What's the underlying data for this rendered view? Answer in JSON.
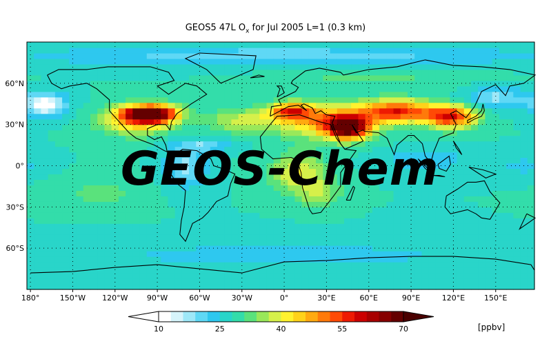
{
  "chart_data": {
    "type": "heatmap",
    "title_main": "GEOS5 47L O",
    "title_sub": "x",
    "title_rest": " for Jul 2005 L=1 (0.3 km)",
    "watermark": "GEOS-Chem",
    "x_ticks": [
      {
        "lon": -180,
        "label": "180°"
      },
      {
        "lon": -150,
        "label": "150°W"
      },
      {
        "lon": -120,
        "label": "120°W"
      },
      {
        "lon": -90,
        "label": "90°W"
      },
      {
        "lon": -60,
        "label": "60°W"
      },
      {
        "lon": -30,
        "label": "30°W"
      },
      {
        "lon": 0,
        "label": "0°"
      },
      {
        "lon": 30,
        "label": "30°E"
      },
      {
        "lon": 60,
        "label": "60°E"
      },
      {
        "lon": 90,
        "label": "90°E"
      },
      {
        "lon": 120,
        "label": "120°E"
      },
      {
        "lon": 150,
        "label": "150°E"
      }
    ],
    "y_ticks": [
      {
        "lat": 60,
        "label": "60°N"
      },
      {
        "lat": 30,
        "label": "30°N"
      },
      {
        "lat": 0,
        "label": "0°"
      },
      {
        "lat": -30,
        "label": "30°S"
      },
      {
        "lat": -60,
        "label": "60°S"
      }
    ],
    "xlim": [
      -182.5,
      177.5
    ],
    "ylim": [
      -90,
      90
    ],
    "colorbar": {
      "min": 10,
      "max": 70,
      "labels": [
        10,
        25,
        40,
        55,
        70
      ],
      "colors": [
        "#ffffff",
        "#d6f4fb",
        "#9ee8f8",
        "#5fd8f5",
        "#2ec8ef",
        "#29d5c9",
        "#33ddaa",
        "#5ae27c",
        "#99e85a",
        "#d6f04a",
        "#fff22e",
        "#ffd21a",
        "#ffaa10",
        "#ff7a0a",
        "#ff4a05",
        "#ee1a02",
        "#cc0000",
        "#a80000",
        "#860000",
        "#640000"
      ],
      "unit": "[ppbv]"
    },
    "field": {
      "background": 28,
      "blobs": [
        {
          "lon": -95,
          "lat": 38,
          "rlon": 18,
          "rlat": 6,
          "v": 45
        },
        {
          "lon": -105,
          "lat": 33,
          "rlon": 25,
          "rlat": 10,
          "v": 18
        },
        {
          "lon": -30,
          "lat": 33,
          "rlon": 25,
          "rlat": 8,
          "v": 10
        },
        {
          "lon": 5,
          "lat": 40,
          "rlon": 15,
          "rlat": 6,
          "v": 22
        },
        {
          "lon": 45,
          "lat": 28,
          "rlon": 14,
          "rlat": 8,
          "v": 38
        },
        {
          "lon": 30,
          "lat": 33,
          "rlon": 35,
          "rlat": 12,
          "v": 20
        },
        {
          "lon": 80,
          "lat": 40,
          "rlon": 25,
          "rlat": 8,
          "v": 28
        },
        {
          "lon": 118,
          "lat": 36,
          "rlon": 18,
          "rlat": 8,
          "v": 30
        },
        {
          "lon": 10,
          "lat": -5,
          "rlon": 20,
          "rlat": 14,
          "v": 12
        },
        {
          "lon": 25,
          "lat": -20,
          "rlon": 15,
          "rlat": 10,
          "v": 8
        },
        {
          "lon": -170,
          "lat": 45,
          "rlon": 15,
          "rlat": 8,
          "v": -18
        },
        {
          "lon": -70,
          "lat": 0,
          "rlon": 15,
          "rlat": 15,
          "v": -10
        },
        {
          "lon": -55,
          "lat": 15,
          "rlon": 20,
          "rlat": 4,
          "v": -8
        },
        {
          "lon": 100,
          "lat": 5,
          "rlon": 30,
          "rlat": 8,
          "v": -6
        },
        {
          "lon": 170,
          "lat": 0,
          "rlon": 20,
          "rlat": 8,
          "v": -4
        },
        {
          "lon": 0,
          "lat": -65,
          "rlon": 180,
          "rlat": 12,
          "v": -4
        },
        {
          "lon": 0,
          "lat": 80,
          "rlon": 180,
          "rlat": 8,
          "v": -8
        },
        {
          "lon": 60,
          "lat": 65,
          "rlon": 70,
          "rlat": 8,
          "v": 4
        },
        {
          "lon": -130,
          "lat": -20,
          "rlon": 30,
          "rlat": 12,
          "v": 4
        },
        {
          "lon": 150,
          "lat": 50,
          "rlon": 20,
          "rlat": 8,
          "v": -10
        }
      ]
    }
  }
}
